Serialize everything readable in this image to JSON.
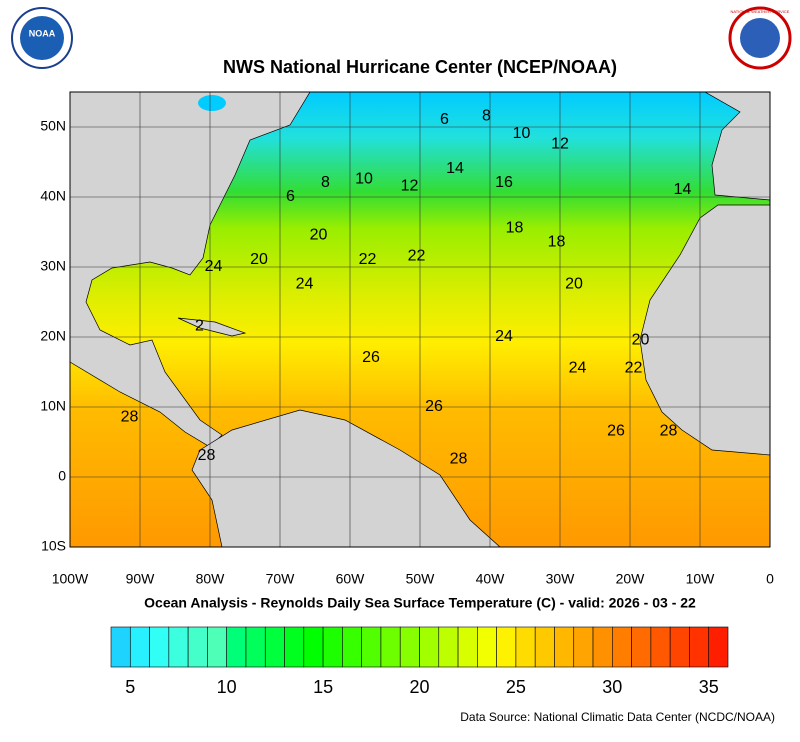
{
  "header": {
    "title": "NWS National Hurricane Center (NCEP/NOAA)",
    "logo_left": "NOAA",
    "logo_right": "NATIONAL WEATHER SERVICE"
  },
  "map": {
    "lon_range": [
      -100,
      0
    ],
    "lat_range": [
      -10,
      55
    ],
    "lon_ticks": [
      {
        "value": -100,
        "label": "100W"
      },
      {
        "value": -90,
        "label": "90W"
      },
      {
        "value": -80,
        "label": "80W"
      },
      {
        "value": -70,
        "label": "70W"
      },
      {
        "value": -60,
        "label": "60W"
      },
      {
        "value": -50,
        "label": "50W"
      },
      {
        "value": -40,
        "label": "40W"
      },
      {
        "value": -30,
        "label": "30W"
      },
      {
        "value": -20,
        "label": "20W"
      },
      {
        "value": -10,
        "label": "10W"
      },
      0
    ],
    "lat_ticks": [
      {
        "value": 50,
        "label": "50N"
      },
      {
        "value": 40,
        "label": "40N"
      },
      {
        "value": 30,
        "label": "30N"
      },
      {
        "value": 20,
        "label": "20N"
      },
      {
        "value": 10,
        "label": "10N"
      },
      0,
      {
        "value": -10,
        "label": "10S"
      }
    ],
    "contour_labels": [
      {
        "text": "6",
        "lon": -46.5,
        "lat": 51
      },
      {
        "text": "8",
        "lon": -40.5,
        "lat": 51.5
      },
      {
        "text": "10",
        "lon": -35.5,
        "lat": 49
      },
      {
        "text": "12",
        "lon": -30,
        "lat": 47.5
      },
      {
        "text": "14",
        "lon": -45,
        "lat": 44
      },
      {
        "text": "16",
        "lon": -38,
        "lat": 42
      },
      {
        "text": "14",
        "lon": -12.5,
        "lat": 41
      },
      {
        "text": "12",
        "lon": -51.5,
        "lat": 41.5
      },
      {
        "text": "10",
        "lon": -58,
        "lat": 42.5
      },
      {
        "text": "8",
        "lon": -63.5,
        "lat": 42
      },
      {
        "text": "6",
        "lon": -68.5,
        "lat": 40
      },
      {
        "text": "20",
        "lon": -64.5,
        "lat": 34.5
      },
      {
        "text": "22",
        "lon": -57.5,
        "lat": 31
      },
      {
        "text": "22",
        "lon": -50.5,
        "lat": 31.5
      },
      {
        "text": "18",
        "lon": -36.5,
        "lat": 35.5
      },
      {
        "text": "18",
        "lon": -30.5,
        "lat": 33.5
      },
      {
        "text": "20",
        "lon": -73,
        "lat": 31
      },
      {
        "text": "24",
        "lon": -79.5,
        "lat": 30
      },
      {
        "text": "24",
        "lon": -66.5,
        "lat": 27.5
      },
      {
        "text": "20",
        "lon": -28,
        "lat": 27.5
      },
      {
        "text": "2",
        "lon": -81.5,
        "lat": 21.5
      },
      {
        "text": "24",
        "lon": -38,
        "lat": 20
      },
      {
        "text": "20",
        "lon": -18.5,
        "lat": 19.5
      },
      {
        "text": "26",
        "lon": -57,
        "lat": 17
      },
      {
        "text": "24",
        "lon": -27.5,
        "lat": 15.5
      },
      {
        "text": "22",
        "lon": -19.5,
        "lat": 15.5
      },
      {
        "text": "26",
        "lon": -48,
        "lat": 10
      },
      {
        "text": "28",
        "lon": -91.5,
        "lat": 8.5
      },
      {
        "text": "28",
        "lon": -80.5,
        "lat": 3
      },
      {
        "text": "26",
        "lon": -22,
        "lat": 6.5
      },
      {
        "text": "28",
        "lon": -14.5,
        "lat": 6.5
      },
      {
        "text": "28",
        "lon": -44.5,
        "lat": 2.5
      }
    ]
  },
  "caption": "Ocean Analysis - Reynolds Daily Sea Surface Temperature (C) - valid: 2026 - 03 - 22",
  "colorbar": {
    "range": [
      4,
      36
    ],
    "ticks": [
      5,
      10,
      15,
      20,
      25,
      30,
      35
    ]
  },
  "source": "Data Source: National Climatic Data Center (NCDC/NOAA)"
}
